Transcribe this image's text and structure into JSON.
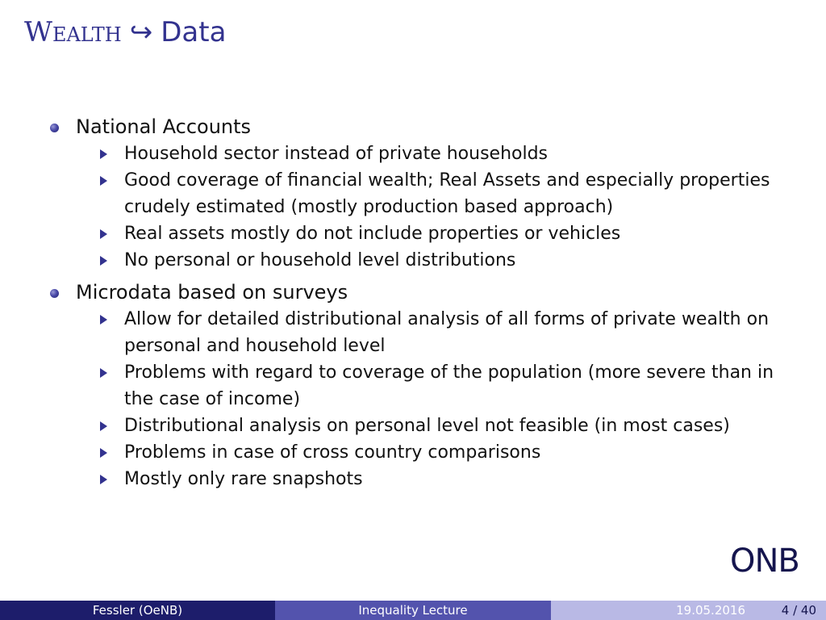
{
  "title": {
    "word": "Wealth",
    "arrow": "↪",
    "rest": "Data"
  },
  "sections": [
    {
      "heading": "National Accounts",
      "items": [
        "Household sector instead of private households",
        "Good coverage of financial wealth; Real Assets and especially properties crudely estimated (mostly production based approach)",
        "Real assets mostly do not include properties or vehicles",
        "No personal or household level distributions"
      ]
    },
    {
      "heading": "Microdata based on surveys",
      "items": [
        "Allow for detailed distributional analysis of all forms of private wealth on personal and household level",
        "Problems with regard to coverage of the population (more severe than in the case of income)",
        "Distributional analysis on personal level not feasible (in most cases)",
        "Problems in case of cross country comparisons",
        "Mostly only rare snapshots"
      ]
    }
  ],
  "logo": {
    "text": "ONB"
  },
  "footer": {
    "author": "Fessler  (OeNB)",
    "talk": "Inequality Lecture",
    "date": "19.05.2016",
    "page": "4 / 40"
  },
  "colors": {
    "accent": "#33338f",
    "footer_dark": "#1d1d6b",
    "footer_mid": "#5353ad",
    "footer_light": "#b9b9e5"
  }
}
